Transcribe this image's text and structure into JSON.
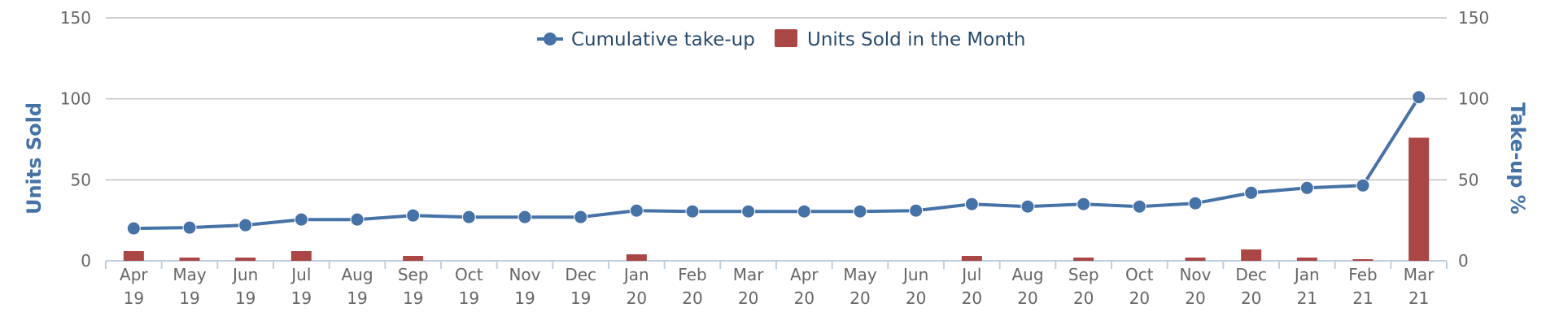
{
  "chart_data": {
    "type": "bar+line",
    "title": "",
    "categories": [
      [
        "Apr",
        "19"
      ],
      [
        "May",
        "19"
      ],
      [
        "Jun",
        "19"
      ],
      [
        "Jul",
        "19"
      ],
      [
        "Aug",
        "19"
      ],
      [
        "Sep",
        "19"
      ],
      [
        "Oct",
        "19"
      ],
      [
        "Nov",
        "19"
      ],
      [
        "Dec",
        "19"
      ],
      [
        "Jan",
        "20"
      ],
      [
        "Feb",
        "20"
      ],
      [
        "Mar",
        "20"
      ],
      [
        "Apr",
        "20"
      ],
      [
        "May",
        "20"
      ],
      [
        "Jun",
        "20"
      ],
      [
        "Jul",
        "20"
      ],
      [
        "Aug",
        "20"
      ],
      [
        "Sep",
        "20"
      ],
      [
        "Oct",
        "20"
      ],
      [
        "Nov",
        "20"
      ],
      [
        "Dec",
        "20"
      ],
      [
        "Jan",
        "21"
      ],
      [
        "Feb",
        "21"
      ],
      [
        "Mar",
        "21"
      ]
    ],
    "series": [
      {
        "name": "Units Sold in the Month",
        "type": "bar",
        "axis": "left",
        "color": "#aa4643",
        "values": [
          6,
          2,
          2,
          6,
          0,
          3,
          0,
          0,
          0,
          4,
          0,
          0,
          0,
          0,
          0,
          3,
          0,
          2,
          0,
          2,
          7,
          2,
          1,
          76
        ]
      },
      {
        "name": "Cumulative take-up",
        "type": "line",
        "axis": "right",
        "color": "#4572a7",
        "values": [
          20,
          20.5,
          22,
          25.5,
          25.5,
          28,
          27,
          27,
          27,
          31,
          30.5,
          30.5,
          30.5,
          30.5,
          31,
          35,
          33.5,
          35,
          33.5,
          35.5,
          42,
          45,
          46.5,
          101
        ]
      }
    ],
    "ylabel_left": "Units Sold",
    "ylabel_right": "Take-up %",
    "ylim_left": [
      0,
      150
    ],
    "ylim_right": [
      0,
      150
    ],
    "yticks_left": [
      "0",
      "50",
      "100",
      "150"
    ],
    "yticks_right": [
      "0",
      "50",
      "100",
      "150"
    ],
    "legend_position": "top-center",
    "grid": true
  }
}
